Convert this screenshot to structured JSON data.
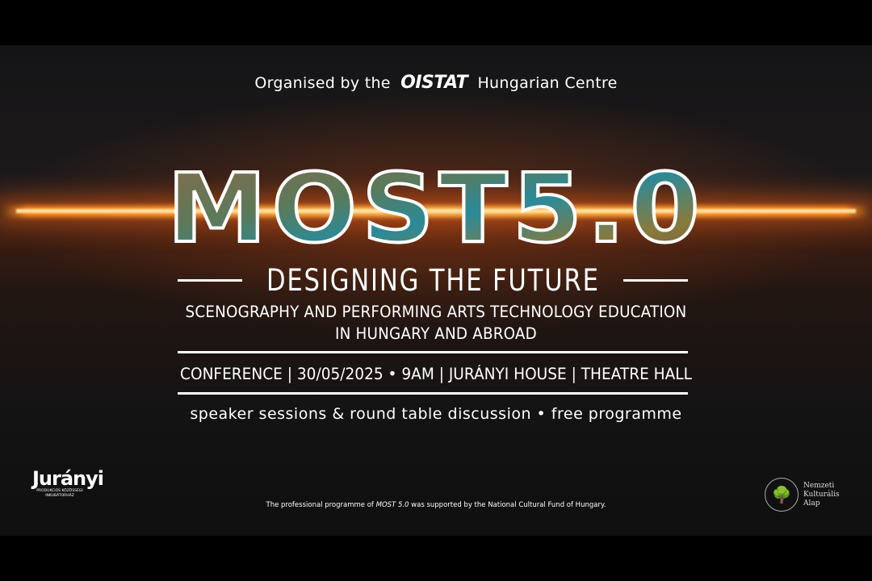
{
  "header": {
    "organised_prefix": "Organised by the",
    "organiser_logo": "OISTAT",
    "organiser_suffix": "Hungarian Centre"
  },
  "title": {
    "main": "MOST5.0",
    "subtitle": "DESIGNING THE FUTURE",
    "description_line1": "SCENOGRAPHY AND PERFORMING ARTS TECHNOLOGY EDUCATION",
    "description_line2": "IN HUNGARY AND ABROAD"
  },
  "event": {
    "info": "CONFERENCE | 30/05/2025 • 9AM | JURÁNYI HOUSE | THEATRE HALL",
    "tagline": "speaker sessions & round table discussion • free programme"
  },
  "footer": {
    "left_logo": "Jurányi",
    "left_logo_caption_1": "PRODUKCIÓS KÖZÖSSÉGI",
    "left_logo_caption_2": "INKUBÁTORHÁZ",
    "support_prefix": "The professional programme of",
    "support_italic": "MOST 5.0",
    "support_suffix": "was supported by the National Cultural Fund of Hungary.",
    "right_logo_lines": [
      "Nemzeti",
      "Kulturális",
      "Alap"
    ]
  },
  "colors": {
    "horizon": "#ff8a1e",
    "background": "#141416",
    "text": "#ffffff"
  }
}
